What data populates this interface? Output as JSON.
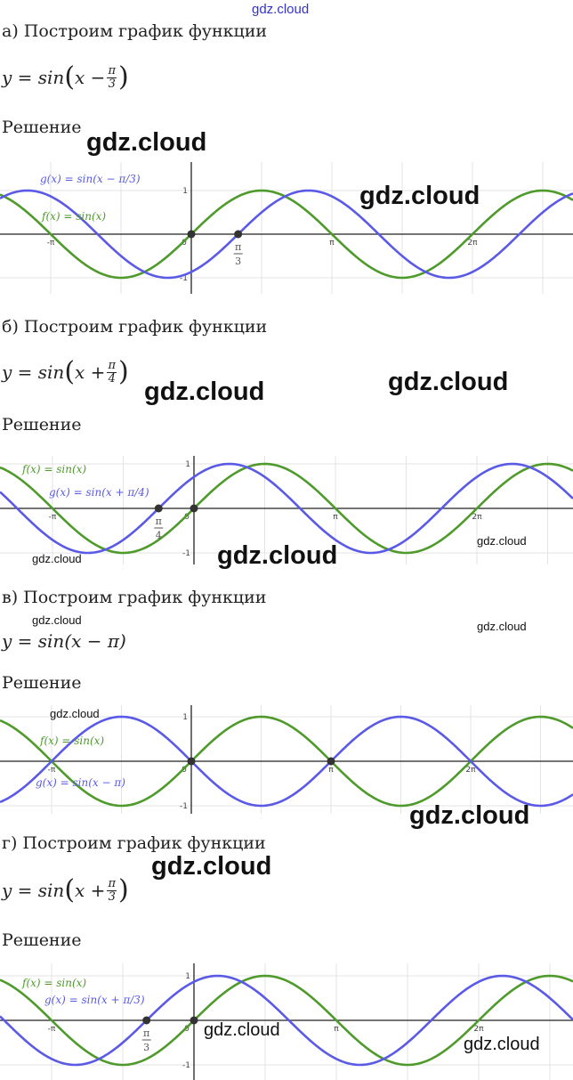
{
  "watermark": "gdz.cloud",
  "colors": {
    "f_curve": "#4e9a2b",
    "g_curve": "#5a5ae6",
    "axis": "#222222",
    "grid": "#e3e3e3"
  },
  "solution_label": "Решение",
  "sections": [
    {
      "heading": "а) Построим график функции",
      "formula": {
        "lhs": "y = sin",
        "arg": "x −",
        "num": "π",
        "den": "3"
      }
    },
    {
      "heading": "б) Построим график функции",
      "formula": {
        "lhs": "y = sin",
        "arg": "x +",
        "num": "π",
        "den": "4"
      }
    },
    {
      "heading": "в) Построим график функции",
      "formula": {
        "text": "y = sin(x − π)"
      }
    },
    {
      "heading": "г) Построим график функции",
      "formula": {
        "lhs": "y = sin",
        "arg": "x +",
        "num": "π",
        "den": "3"
      }
    }
  ],
  "chart_data": [
    {
      "type": "line",
      "x_unit": "π",
      "xlim": [
        -1.33,
        2.69
      ],
      "ylim": [
        -1.2,
        1.2
      ],
      "grid": true,
      "x_ticks": [
        "-π",
        "0",
        "π",
        "2π"
      ],
      "y_ticks": [
        "1",
        "-1"
      ],
      "extra_tick": {
        "num": "π",
        "den": "3"
      },
      "series": [
        {
          "name": "f(x) = sin(x)",
          "shift": 0,
          "color": "#4e9a2b"
        },
        {
          "name": "g(x) = sin(x − π/3)",
          "shift": -0.3333,
          "color": "#5a5ae6"
        }
      ],
      "points": [
        [
          0,
          0
        ],
        [
          0.3333,
          0
        ]
      ]
    },
    {
      "type": "line",
      "x_unit": "π",
      "xlim": [
        -1.37,
        2.65
      ],
      "ylim": [
        -1.2,
        1.2
      ],
      "grid": true,
      "x_ticks": [
        "-π",
        "0",
        "π",
        "2π"
      ],
      "y_ticks": [
        "1",
        "-1"
      ],
      "extra_tick": {
        "num": "π",
        "den": "4"
      },
      "series": [
        {
          "name": "f(x) = sin(x)",
          "shift": 0,
          "color": "#4e9a2b"
        },
        {
          "name": "g(x) = sin(x + π/4)",
          "shift": 0.25,
          "color": "#5a5ae6"
        }
      ],
      "points": [
        [
          0,
          0
        ],
        [
          -0.25,
          0
        ]
      ]
    },
    {
      "type": "line",
      "x_unit": "π",
      "xlim": [
        -1.35,
        2.7
      ],
      "ylim": [
        -1.2,
        1.2
      ],
      "grid": true,
      "x_ticks": [
        "-π",
        "0",
        "π",
        "2π"
      ],
      "y_ticks": [
        "1",
        "-1"
      ],
      "series": [
        {
          "name": "f(x) = sin(x)",
          "shift": 0,
          "color": "#4e9a2b"
        },
        {
          "name": "g(x) = sin(x − π)",
          "shift": -1,
          "color": "#5a5ae6"
        }
      ],
      "points": [
        [
          0,
          0
        ],
        [
          1,
          0
        ]
      ]
    },
    {
      "type": "line",
      "x_unit": "π",
      "xlim": [
        -1.3,
        2.67
      ],
      "ylim": [
        -1.2,
        1.2
      ],
      "grid": true,
      "x_ticks": [
        "-π",
        "0",
        "π",
        "2π"
      ],
      "y_ticks": [
        "1",
        "-1"
      ],
      "extra_tick": {
        "num": "π",
        "den": "3"
      },
      "series": [
        {
          "name": "f(x) = sin(x)",
          "shift": 0,
          "color": "#4e9a2b"
        },
        {
          "name": "g(x) = sin(x + π/3)",
          "shift": 0.3333,
          "color": "#5a5ae6"
        }
      ],
      "points": [
        [
          0,
          0
        ],
        [
          -0.3333,
          0
        ]
      ]
    }
  ]
}
